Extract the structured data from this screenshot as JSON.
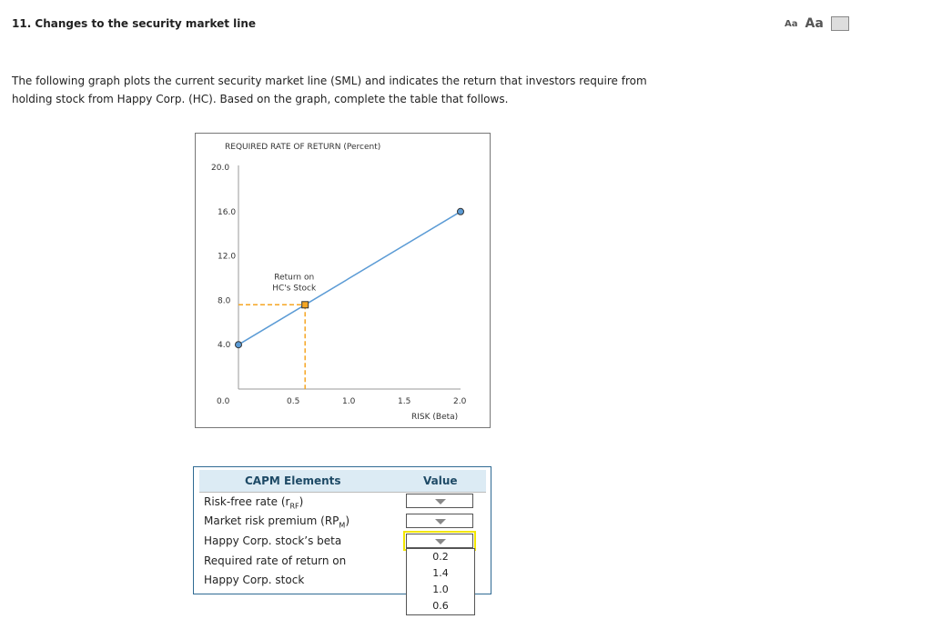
{
  "title": "11. Changes to the security market line",
  "tools": {
    "small_font": "Aa",
    "large_font": "Aa",
    "print_icon": "printer-icon"
  },
  "intro": "The following graph plots the current security market line (SML) and indicates the return that investors require from holding stock from Happy Corp. (HC). Based on the graph, complete the table that follows.",
  "chart_data": {
    "type": "line",
    "ylabel": "REQUIRED RATE OF RETURN (Percent)",
    "xlabel": "RISK (Beta)",
    "xlim": [
      0,
      2.0
    ],
    "ylim": [
      0,
      20.0
    ],
    "x_ticks": [
      "0.0",
      "0.5",
      "1.0",
      "1.5",
      "2.0"
    ],
    "y_ticks": [
      "4.0",
      "8.0",
      "12.0",
      "16.0",
      "20.0"
    ],
    "series": [
      {
        "x": [
          0,
          2.0
        ],
        "y": [
          4.0,
          16.0
        ],
        "color": "#5b9bd5"
      }
    ],
    "marker": {
      "label": "Return on HC's Stock",
      "label_lines": [
        "Return on",
        "HC's Stock"
      ],
      "x": 0.6,
      "y": 7.6,
      "color": "#f5a623"
    }
  },
  "table": {
    "headers": [
      "CAPM Elements",
      "Value"
    ],
    "rows": [
      {
        "label": "Risk-free rate (r",
        "sub": "RF",
        "suffix": ")"
      },
      {
        "label": "Market risk premium (RP",
        "sub": "M",
        "suffix": ")"
      },
      {
        "label": "Happy Corp. stock’s beta",
        "sub": "",
        "suffix": ""
      },
      {
        "label": "Required rate of return on",
        "sub": "",
        "suffix": ""
      },
      {
        "label": "Happy Corp. stock",
        "sub": "",
        "suffix": ""
      }
    ],
    "dropdown_options": [
      "0.2",
      "1.4",
      "1.0",
      "0.6"
    ]
  }
}
